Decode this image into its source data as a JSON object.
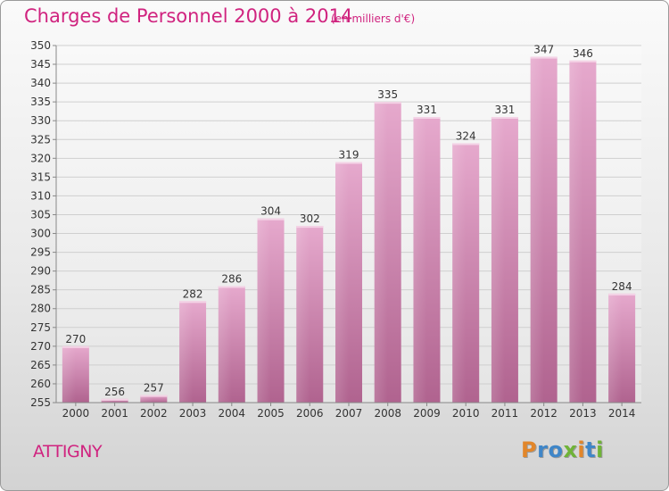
{
  "title": "Charges de Personnel 2000 à 2014",
  "subtitle": "(en milliers d'€)",
  "commune": "ATTIGNY",
  "brand": {
    "letters": [
      "P",
      "r",
      "o",
      "x",
      "i",
      "t",
      "i"
    ],
    "colors": [
      "#e2862a",
      "#3f86c8",
      "#3f86c8",
      "#6fb337",
      "#e2862a",
      "#3f86c8",
      "#6fb337"
    ]
  },
  "colors": {
    "accent": "#d0237f",
    "bar": "#cf7fb0"
  },
  "chart_data": {
    "type": "bar",
    "title": "Charges de Personnel 2000 à 2014",
    "subtitle": "(en milliers d'€)",
    "categories": [
      "2000",
      "2001",
      "2002",
      "2003",
      "2004",
      "2005",
      "2006",
      "2007",
      "2008",
      "2009",
      "2010",
      "2011",
      "2012",
      "2013",
      "2014"
    ],
    "values": [
      270,
      256,
      257,
      282,
      286,
      304,
      302,
      319,
      335,
      331,
      324,
      331,
      347,
      346,
      284
    ],
    "ylim": [
      255,
      350
    ],
    "yticks": [
      255,
      260,
      265,
      270,
      275,
      280,
      285,
      290,
      295,
      300,
      305,
      310,
      315,
      320,
      325,
      330,
      335,
      340,
      345,
      350
    ],
    "xlabel": "",
    "ylabel": "",
    "grid": true,
    "data_labels": true
  }
}
